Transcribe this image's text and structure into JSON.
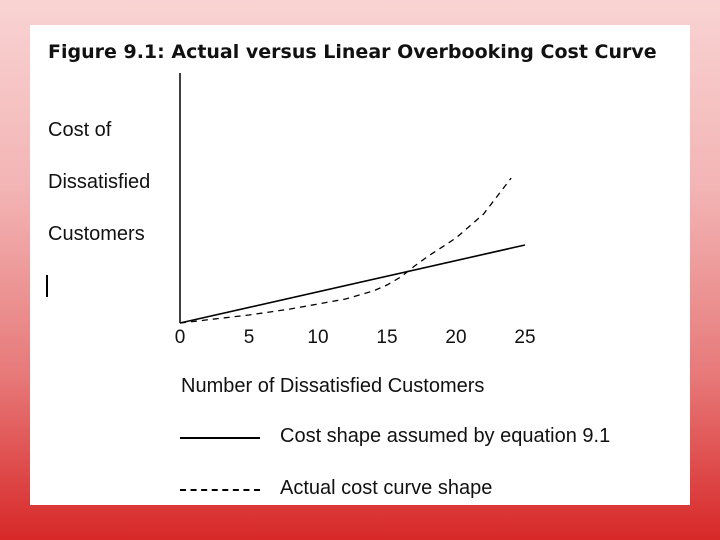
{
  "chart_data": {
    "type": "line",
    "title": "Figure 9.1:  Actual versus Linear Overbooking Cost Curve",
    "ylabel_lines": [
      "Cost of",
      "Dissatisfied",
      "Customers"
    ],
    "xlabel": "Number of Dissatisfied Customers",
    "xticks": [
      0,
      5,
      10,
      15,
      20,
      25
    ],
    "xlim": [
      0,
      25
    ],
    "ylim": [
      0,
      250
    ],
    "grid": false,
    "legend_placement": "bottom",
    "series": [
      {
        "name": "Cost shape assumed by equation 9.1",
        "style": "solid",
        "x": [
          0,
          25
        ],
        "y": [
          0,
          78
        ]
      },
      {
        "name": "Actual cost curve shape",
        "style": "dashed",
        "x": [
          0,
          5,
          8,
          12,
          14,
          15,
          16,
          17,
          18,
          20,
          22,
          24
        ],
        "y": [
          0,
          8,
          14,
          24,
          32,
          38,
          46,
          57,
          67,
          85,
          109,
          145
        ]
      }
    ]
  }
}
